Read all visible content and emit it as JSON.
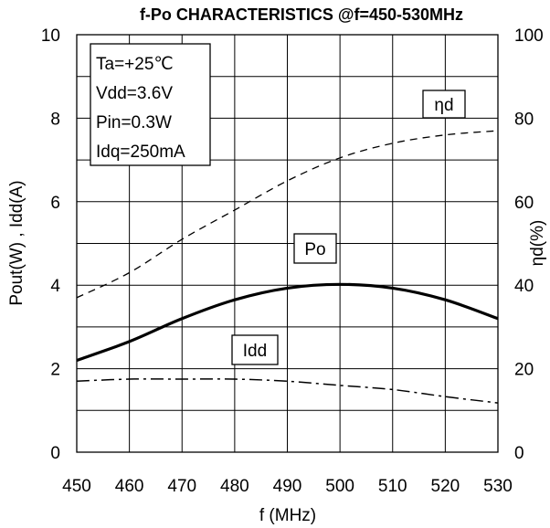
{
  "chart_data": {
    "type": "line",
    "title": "f-Po CHARACTERISTICS @f=450-530MHz",
    "xlabel": "f (MHz)",
    "ylabel": "Pout(W) , Idd(A)",
    "y2label": "ηd(%)",
    "xlim": [
      450,
      530
    ],
    "ylim": [
      0,
      10
    ],
    "y2lim": [
      0,
      100
    ],
    "x_ticks": [
      "450",
      "460",
      "470",
      "480",
      "490",
      "500",
      "510",
      "520",
      "530"
    ],
    "y_ticks": [
      "0",
      "2",
      "4",
      "6",
      "8",
      "10"
    ],
    "y2_ticks": [
      "0",
      "20",
      "40",
      "60",
      "80",
      "100"
    ],
    "grid": true,
    "conditions": [
      "Ta=+25℃",
      "Vdd=3.6V",
      "Pin=0.3W",
      "Idq=250mA"
    ],
    "series": [
      {
        "name": "Po",
        "axis": "left",
        "style": "solid",
        "x": [
          450,
          460,
          470,
          480,
          490,
          500,
          510,
          520,
          530
        ],
        "y": [
          2.2,
          2.65,
          3.2,
          3.65,
          3.93,
          4.02,
          3.93,
          3.65,
          3.2
        ]
      },
      {
        "name": "ηd",
        "axis": "right",
        "style": "dashed",
        "x": [
          450,
          460,
          470,
          480,
          490,
          500,
          510,
          520,
          530
        ],
        "y": [
          37,
          43,
          51,
          58,
          65,
          70.5,
          74,
          76,
          77
        ]
      },
      {
        "name": "Idd",
        "axis": "left",
        "style": "dashdot",
        "x": [
          450,
          460,
          470,
          480,
          490,
          500,
          510,
          520,
          530
        ],
        "y": [
          1.7,
          1.75,
          1.75,
          1.75,
          1.7,
          1.6,
          1.5,
          1.33,
          1.18
        ]
      }
    ]
  }
}
